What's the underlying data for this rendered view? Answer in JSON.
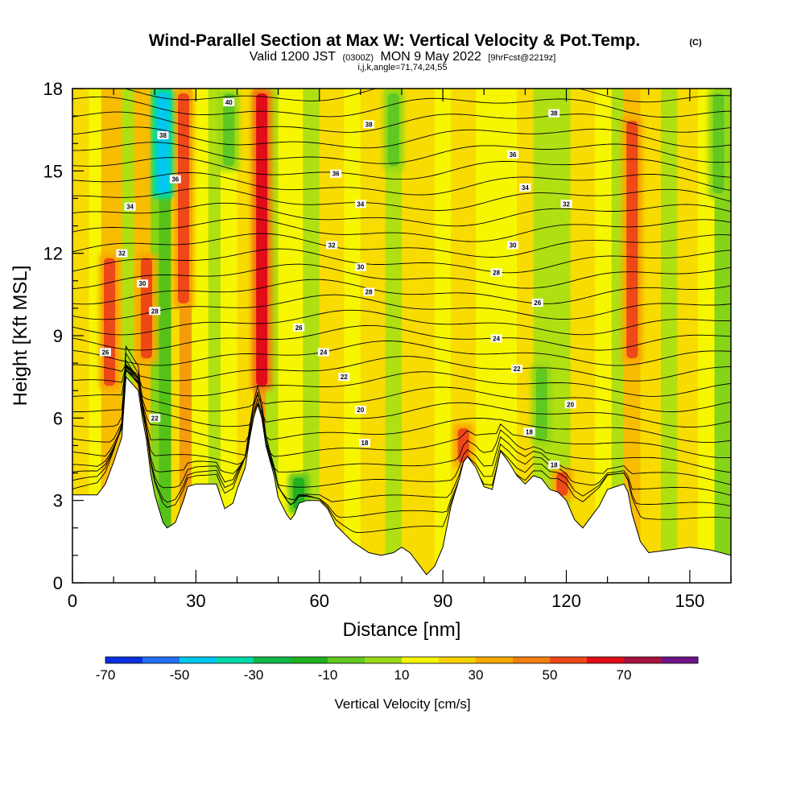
{
  "title": {
    "main": "Wind-Parallel Section at Max W: Vertical Velocity & Pot.Temp.",
    "copyright": "(C)",
    "valid_prefix": "Valid 1200 JST",
    "valid_utc": "(0300Z)",
    "valid_date": "MON 9 May 2022",
    "forecast": "[9hrFcst@2219z]",
    "params": "i,j,k,angle=71,74,24,55"
  },
  "chart_data": {
    "type": "heatmap",
    "xlabel": "Distance [nm]",
    "ylabel": "Height [Kft MSL]",
    "xlim": [
      0,
      160
    ],
    "ylim": [
      0,
      18
    ],
    "x_ticks": [
      0,
      30,
      60,
      90,
      120,
      150
    ],
    "y_ticks": [
      0,
      3,
      6,
      9,
      12,
      15,
      18
    ],
    "colorbar": {
      "title": "Vertical Velocity [cm/s]",
      "tick_labels": [
        "-70",
        "-50",
        "-30",
        "-10",
        "10",
        "30",
        "50",
        "70"
      ],
      "levels": [
        -80,
        -70,
        -60,
        -50,
        -40,
        -30,
        -20,
        -10,
        0,
        10,
        20,
        30,
        40,
        50,
        60,
        70,
        80
      ],
      "colors": [
        "#0a2ee0",
        "#1f6ff2",
        "#00c8f0",
        "#00d8a8",
        "#10b848",
        "#20b020",
        "#60c820",
        "#98d818",
        "#f5f500",
        "#f8d200",
        "#f8a800",
        "#f27f10",
        "#ee4818",
        "#e00c18",
        "#a81040",
        "#6e1486"
      ]
    },
    "terrain_profile": {
      "x": [
        0,
        6,
        8,
        10,
        12,
        13,
        16,
        17,
        18,
        19,
        20,
        22,
        23,
        25,
        27,
        28,
        30,
        33,
        35,
        37,
        39,
        40,
        42,
        43,
        44,
        45,
        46,
        47,
        49,
        50,
        52,
        53,
        54,
        55,
        57,
        60,
        62,
        64,
        66,
        68,
        70,
        72,
        75,
        78,
        80,
        82,
        84,
        85,
        86,
        88,
        90,
        92,
        94,
        95,
        96,
        98,
        100,
        102,
        104,
        106,
        108,
        110,
        112,
        114,
        116,
        118,
        120,
        122,
        124,
        126,
        128,
        130,
        132,
        134,
        135,
        136,
        138,
        140,
        145,
        150,
        155,
        160
      ],
      "height_kft": [
        3.2,
        3.2,
        3.6,
        4.4,
        5.3,
        7.5,
        7.0,
        6.0,
        5.2,
        4.0,
        3.2,
        2.2,
        2.0,
        2.2,
        3.0,
        3.5,
        3.6,
        3.6,
        3.6,
        2.7,
        2.9,
        3.4,
        4.2,
        5.2,
        6.0,
        6.5,
        6.0,
        5.0,
        3.9,
        3.1,
        2.5,
        2.3,
        2.5,
        2.9,
        3.0,
        3.0,
        2.7,
        2.1,
        1.8,
        1.5,
        1.3,
        1.1,
        1.0,
        1.1,
        1.3,
        1.1,
        0.7,
        0.5,
        0.3,
        0.6,
        1.3,
        2.8,
        3.8,
        4.4,
        4.6,
        4.2,
        3.5,
        3.4,
        4.8,
        4.4,
        3.9,
        3.6,
        3.9,
        3.8,
        3.4,
        3.3,
        3.0,
        2.3,
        2.0,
        2.4,
        2.8,
        3.4,
        3.5,
        3.6,
        3.3,
        2.5,
        1.5,
        1.1,
        1.2,
        1.3,
        1.2,
        1.0
      ]
    },
    "updraft_cores": [
      {
        "x": 9,
        "y_range": [
          7,
          12
        ],
        "w": 40
      },
      {
        "x": 18,
        "y_range": [
          8,
          12
        ],
        "w": 40
      },
      {
        "x": 27,
        "y_range": [
          10,
          18
        ],
        "w": 40
      },
      {
        "x": 46,
        "y_range": [
          7,
          18
        ],
        "w": 50
      },
      {
        "x": 95,
        "y_range": [
          4.2,
          5.8
        ],
        "w": 40
      },
      {
        "x": 119,
        "y_range": [
          3.0,
          4.2
        ],
        "w": 40
      },
      {
        "x": 136,
        "y_range": [
          8,
          17
        ],
        "w": 40
      }
    ],
    "downdraft_cores": [
      {
        "x": 22,
        "y_range": [
          14,
          18
        ],
        "w": -60
      },
      {
        "x": 55,
        "y_range": [
          2.5,
          4.0
        ],
        "w": -30
      },
      {
        "x": 38,
        "y_range": [
          15,
          18
        ],
        "w": -20
      },
      {
        "x": 78,
        "y_range": [
          15,
          18
        ],
        "w": -20
      },
      {
        "x": 114,
        "y_range": [
          5,
          8
        ],
        "w": -20
      },
      {
        "x": 157,
        "y_range": [
          14,
          18
        ],
        "w": -20
      }
    ],
    "isentropes": {
      "levels": [
        16,
        18,
        20,
        22,
        24,
        26,
        28,
        30,
        32,
        34,
        36,
        38,
        40
      ],
      "labels": [
        {
          "text": "40",
          "x": 38,
          "y": 17.5
        },
        {
          "text": "38",
          "x": 22,
          "y": 16.3
        },
        {
          "text": "38",
          "x": 72,
          "y": 16.7
        },
        {
          "text": "38",
          "x": 117,
          "y": 17.1
        },
        {
          "text": "36",
          "x": 25,
          "y": 14.7
        },
        {
          "text": "36",
          "x": 64,
          "y": 14.9
        },
        {
          "text": "36",
          "x": 107,
          "y": 15.6
        },
        {
          "text": "34",
          "x": 14,
          "y": 13.7
        },
        {
          "text": "34",
          "x": 70,
          "y": 13.8
        },
        {
          "text": "34",
          "x": 110,
          "y": 14.4
        },
        {
          "text": "32",
          "x": 12,
          "y": 12.0
        },
        {
          "text": "32",
          "x": 63,
          "y": 12.3
        },
        {
          "text": "32",
          "x": 120,
          "y": 13.8
        },
        {
          "text": "30",
          "x": 17,
          "y": 10.9
        },
        {
          "text": "30",
          "x": 70,
          "y": 11.5
        },
        {
          "text": "30",
          "x": 107,
          "y": 12.3
        },
        {
          "text": "28",
          "x": 20,
          "y": 9.9
        },
        {
          "text": "28",
          "x": 72,
          "y": 10.6
        },
        {
          "text": "28",
          "x": 103,
          "y": 11.3
        },
        {
          "text": "26",
          "x": 8,
          "y": 8.4
        },
        {
          "text": "26",
          "x": 55,
          "y": 9.3
        },
        {
          "text": "26",
          "x": 113,
          "y": 10.2
        },
        {
          "text": "24",
          "x": 61,
          "y": 8.4
        },
        {
          "text": "24",
          "x": 103,
          "y": 8.9
        },
        {
          "text": "22",
          "x": 20,
          "y": 6.0
        },
        {
          "text": "22",
          "x": 66,
          "y": 7.5
        },
        {
          "text": "22",
          "x": 108,
          "y": 7.8
        },
        {
          "text": "20",
          "x": 70,
          "y": 6.3
        },
        {
          "text": "20",
          "x": 121,
          "y": 6.5
        },
        {
          "text": "18",
          "x": 71,
          "y": 5.1
        },
        {
          "text": "18",
          "x": 111,
          "y": 5.5
        },
        {
          "text": "18",
          "x": 117,
          "y": 4.3
        }
      ]
    }
  }
}
